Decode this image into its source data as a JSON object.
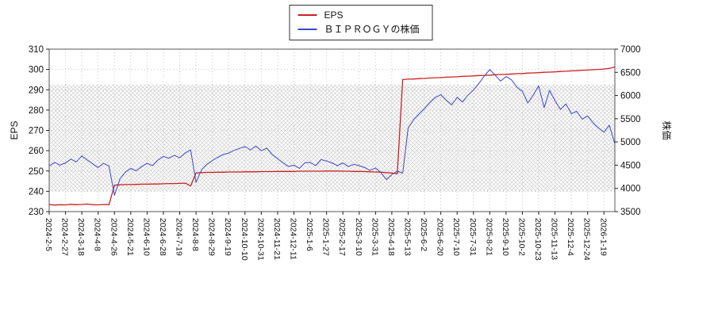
{
  "legend": {
    "items": [
      {
        "label": "EPS",
        "color": "#cc2020"
      },
      {
        "label": "ＢＩＰＲＯＧＹの株価",
        "color": "#3c46c8"
      }
    ]
  },
  "chart_data": {
    "type": "line",
    "title": "",
    "grid": true,
    "grid_color": "#c8c8c8",
    "border_color": "#555555",
    "band": {
      "axis": "left",
      "from": 240,
      "to": 292.5,
      "style": "crosshatch",
      "hatch_color": "#c4c4c4"
    },
    "left_axis": {
      "label": "EPS",
      "min": 230,
      "max": 310,
      "ticks": [
        230,
        240,
        250,
        260,
        270,
        280,
        290,
        300,
        310
      ]
    },
    "right_axis": {
      "label": "株価",
      "min": 3500,
      "max": 7000,
      "ticks": [
        3500,
        4000,
        4500,
        5000,
        5500,
        6000,
        6500,
        7000
      ]
    },
    "n_points": 105,
    "tick_every": 3,
    "x_tick_labels": [
      "2024-2-5",
      "2024-2-27",
      "2024-3-18",
      "2024-4-8",
      "2024-4-26",
      "2024-5-21",
      "2024-6-10",
      "2024-6-28",
      "2024-7-19",
      "2024-8-8",
      "2024-8-29",
      "2024-9-19",
      "2024-10-10",
      "2024-10-31",
      "2024-11-21",
      "2024-12-11",
      "2025-1-6",
      "2025-1-27",
      "2025-2-17",
      "2025-3-10",
      "2025-3-31",
      "2025-4-18",
      "2025-5-13",
      "2025-6-2",
      "2025-6-20",
      "2025-7-10",
      "2025-7-31",
      "2025-8-21",
      "2025-9-10",
      "2025-10-2",
      "2025-10-23",
      "2025-11-13",
      "2025-12-4",
      "2025-12-24",
      "2026-1-19"
    ],
    "series": [
      {
        "name": "EPS",
        "axis": "left",
        "color": "#cc2020",
        "width": 1.3,
        "values": [
          233.5,
          233.2,
          233.4,
          233.3,
          233.6,
          233.4,
          233.5,
          233.7,
          233.4,
          233.3,
          233.5,
          233.4,
          243.0,
          243.2,
          243.3,
          243.3,
          243.4,
          243.5,
          243.5,
          243.6,
          243.6,
          243.7,
          243.8,
          243.8,
          243.9,
          244.0,
          242.6,
          249.0,
          249.2,
          249.3,
          249.3,
          249.4,
          249.4,
          249.5,
          249.5,
          249.5,
          249.6,
          249.6,
          249.6,
          249.7,
          249.7,
          249.7,
          249.8,
          249.8,
          249.8,
          249.8,
          249.9,
          249.9,
          249.9,
          249.9,
          249.9,
          250.0,
          250.0,
          250.0,
          249.9,
          249.9,
          249.8,
          249.8,
          249.7,
          249.6,
          249.5,
          249.4,
          249.2,
          249.0,
          248.6,
          295.0,
          295.2,
          295.3,
          295.5,
          295.6,
          295.8,
          295.9,
          296.0,
          296.2,
          296.3,
          296.4,
          296.6,
          296.7,
          296.8,
          297.0,
          297.1,
          297.2,
          297.4,
          297.5,
          297.6,
          297.8,
          297.9,
          298.0,
          298.2,
          298.3,
          298.4,
          298.6,
          298.7,
          298.8,
          299.0,
          299.1,
          299.3,
          299.4,
          299.6,
          299.7,
          299.9,
          300.0,
          300.2,
          300.5,
          301.2
        ]
      },
      {
        "name": "ＢＩＰＲＯＧＹの株価",
        "axis": "right",
        "color": "#3c46c8",
        "width": 1,
        "values": [
          4480,
          4560,
          4500,
          4550,
          4630,
          4570,
          4700,
          4610,
          4530,
          4450,
          4540,
          4480,
          3850,
          4200,
          4350,
          4430,
          4380,
          4470,
          4540,
          4490,
          4610,
          4690,
          4650,
          4710,
          4660,
          4760,
          4830,
          4130,
          4400,
          4520,
          4600,
          4670,
          4730,
          4760,
          4820,
          4860,
          4900,
          4830,
          4910,
          4810,
          4870,
          4730,
          4640,
          4550,
          4470,
          4500,
          4430,
          4550,
          4560,
          4490,
          4620,
          4590,
          4550,
          4490,
          4550,
          4470,
          4520,
          4490,
          4450,
          4390,
          4440,
          4340,
          4190,
          4300,
          4370,
          4330,
          5300,
          5480,
          5600,
          5720,
          5850,
          5960,
          6020,
          5900,
          5800,
          5960,
          5860,
          6010,
          6120,
          6260,
          6420,
          6560,
          6440,
          6310,
          6410,
          6340,
          6180,
          6090,
          5840,
          6010,
          6210,
          5740,
          6110,
          5890,
          5700,
          5820,
          5610,
          5660,
          5490,
          5560,
          5410,
          5300,
          5210,
          5360,
          4960
        ]
      }
    ]
  }
}
